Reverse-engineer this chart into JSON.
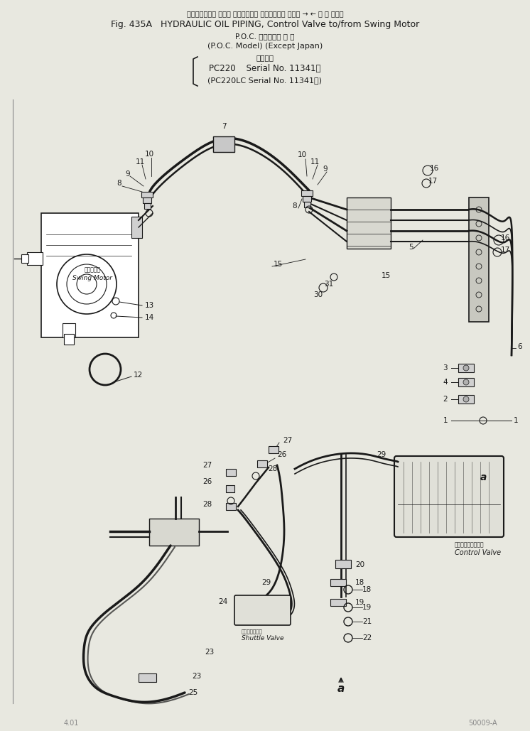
{
  "bg_color": "#e8e8e0",
  "line_color": "#1a1a1a",
  "title_line1": "ハイドロリック オイル パイピング， コントロール バルブ → ← 旋 回 モータ",
  "title_line2": "Fig. 435A   HYDRAULIC OIL PIPING, Control Valve to/from Swing Motor",
  "title_line3": "P.O.C. 仕様　　海 外 向",
  "title_line4": "(P.O.C. Model) (Except Japan)",
  "title_line5": "通用号機",
  "title_line6": "PC220    Serial No. 11341～",
  "title_line7": "(PC220LC Serial No. 11341～)",
  "figsize": [
    7.46,
    10.29
  ],
  "dpi": 100
}
